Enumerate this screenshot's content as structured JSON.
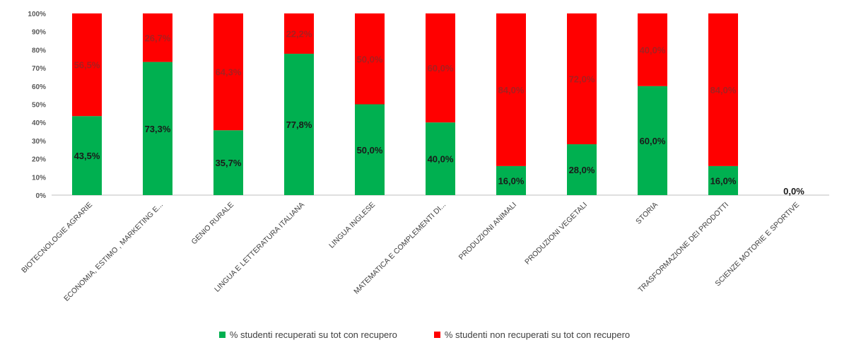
{
  "chart_data": {
    "type": "bar",
    "stacked": true,
    "percent_stacked": true,
    "title": "",
    "xlabel": "",
    "ylabel": "",
    "ylim": [
      0,
      100
    ],
    "y_ticks": [
      "0%",
      "10%",
      "20%",
      "30%",
      "40%",
      "50%",
      "60%",
      "70%",
      "80%",
      "90%",
      "100%"
    ],
    "grid": false,
    "legend_position": "bottom",
    "categories": [
      "BIOTECNOLOGIE AGRARIE",
      "ECONOMIA, ESTIMO , MARKETING E...",
      "GENIO RURALE",
      "LINGUA E LETTERATURA ITALIANA",
      "LINGUA INGLESE",
      "MATEMATICA E COMPLEMENTI DI...",
      "PRODUZIONI ANIMALI",
      "PRODUZIONI VEGETALI",
      "STORIA",
      "TRASFORMAZIONE DEI PRODOTTI",
      "SCIENZE MOTORIE E SPORTIVE"
    ],
    "series": [
      {
        "name": "% studenti recuperati su tot con recupero",
        "color": "#00b050",
        "values": [
          43.5,
          73.3,
          35.7,
          77.8,
          50.0,
          40.0,
          16.0,
          28.0,
          60.0,
          16.0,
          0.0
        ],
        "labels": [
          "43,5%",
          "73,3%",
          "35,7%",
          "77,8%",
          "50,0%",
          "40,0%",
          "16,0%",
          "28,0%",
          "60,0%",
          "16,0%",
          "0,0%"
        ]
      },
      {
        "name": "% studenti non recuperati su tot con recupero",
        "color": "#ff0000",
        "values": [
          56.5,
          26.7,
          64.3,
          22.2,
          50.0,
          60.0,
          84.0,
          72.0,
          40.0,
          84.0,
          0.0
        ],
        "labels": [
          "56,5%",
          "26,7%",
          "64,3%",
          "22,2%",
          "50,0%",
          "60,0%",
          "84,0%",
          "72,0%",
          "40,0%",
          "84,0%",
          ""
        ]
      }
    ]
  }
}
